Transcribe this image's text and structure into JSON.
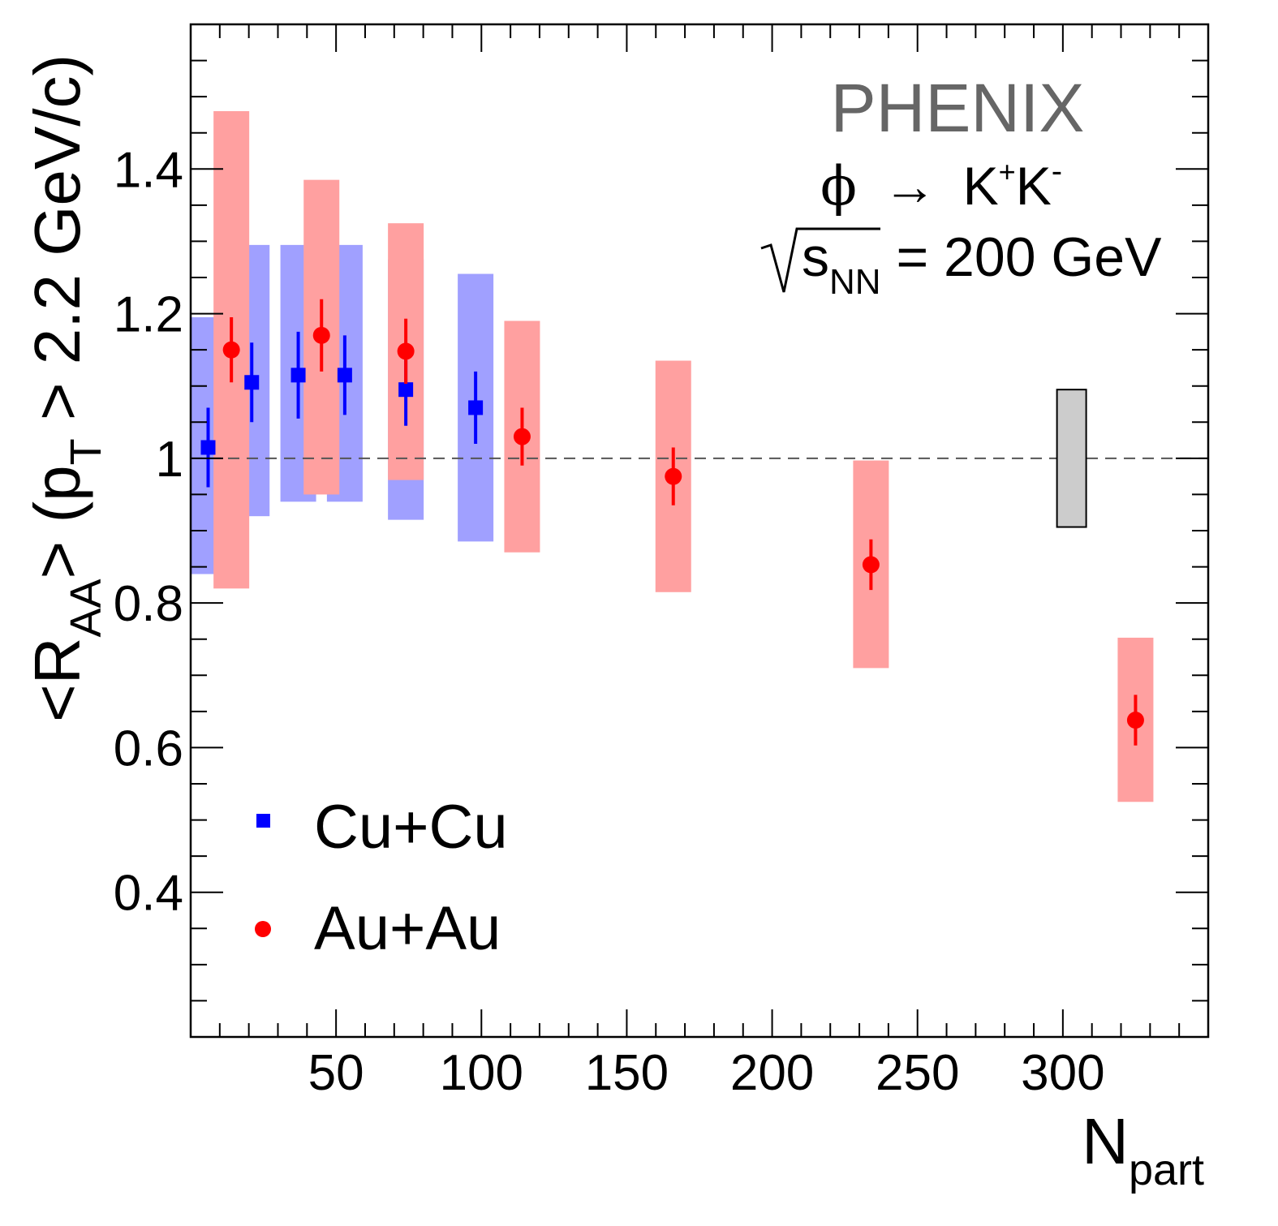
{
  "chart_data": {
    "type": "scatter",
    "title": "PHENIX",
    "annotations": {
      "decay": {
        "phi": "ϕ",
        "arrow": "→",
        "k": "K",
        "plus": "+",
        "k2": "K",
        "minus": "-"
      },
      "energy": {
        "s": "s",
        "sub": "NN",
        "rest": " = 200 GeV"
      }
    },
    "xlabel": {
      "main": "N",
      "sub": "part"
    },
    "ylabel": {
      "open": "<R",
      "sub_aa": "AA",
      "mid": "> (p",
      "sub_t": "T",
      "rest": " > 2.2 GeV/c)"
    },
    "xlim": [
      0,
      350
    ],
    "ylim": [
      0.2,
      1.6
    ],
    "xticks": [
      50,
      100,
      150,
      200,
      250,
      300
    ],
    "xtick_labels": [
      "50",
      "100",
      "150",
      "200",
      "250",
      "300"
    ],
    "yticks": [
      0.4,
      0.6,
      0.8,
      1.0,
      1.2,
      1.4
    ],
    "ytick_labels": [
      "0.4",
      "0.6",
      "0.8",
      "1",
      "1.2",
      "1.4"
    ],
    "reference_line": 1.0,
    "normalization_box": {
      "x": 303,
      "low": 0.905,
      "high": 1.095,
      "color": "#cccccc"
    },
    "legend_position": "bottom-left",
    "series": [
      {
        "name": "Cu+Cu",
        "marker": "square",
        "color": "#0000ff",
        "sys_color": "#a0a0ff",
        "points": [
          {
            "x": 6,
            "y": 1.015,
            "stat": 0.055,
            "sys": [
              0.84,
              1.195
            ]
          },
          {
            "x": 21,
            "y": 1.105,
            "stat": 0.055,
            "sys": [
              0.92,
              1.295
            ]
          },
          {
            "x": 37,
            "y": 1.115,
            "stat": 0.06,
            "sys": [
              0.94,
              1.295
            ]
          },
          {
            "x": 53,
            "y": 1.115,
            "stat": 0.055,
            "sys": [
              0.94,
              1.295
            ]
          },
          {
            "x": 74,
            "y": 1.095,
            "stat": 0.05,
            "sys": [
              0.915,
              1.275
            ]
          },
          {
            "x": 98,
            "y": 1.07,
            "stat": 0.05,
            "sys": [
              0.885,
              1.255
            ]
          }
        ]
      },
      {
        "name": "Au+Au",
        "marker": "circle",
        "color": "#ff0000",
        "sys_color": "#ffa0a0",
        "points": [
          {
            "x": 14,
            "y": 1.15,
            "stat": 0.045,
            "sys": [
              0.82,
              1.48
            ]
          },
          {
            "x": 45,
            "y": 1.17,
            "stat": 0.05,
            "sys": [
              0.95,
              1.385
            ]
          },
          {
            "x": 74,
            "y": 1.148,
            "stat": 0.045,
            "sys": [
              0.97,
              1.325
            ]
          },
          {
            "x": 114,
            "y": 1.03,
            "stat": 0.04,
            "sys": [
              0.87,
              1.19
            ]
          },
          {
            "x": 166,
            "y": 0.975,
            "stat": 0.04,
            "sys": [
              0.815,
              1.135
            ]
          },
          {
            "x": 234,
            "y": 0.853,
            "stat": 0.035,
            "sys": [
              0.71,
              0.997
            ]
          },
          {
            "x": 325,
            "y": 0.638,
            "stat": 0.035,
            "sys": [
              0.525,
              0.752
            ]
          }
        ]
      }
    ]
  }
}
